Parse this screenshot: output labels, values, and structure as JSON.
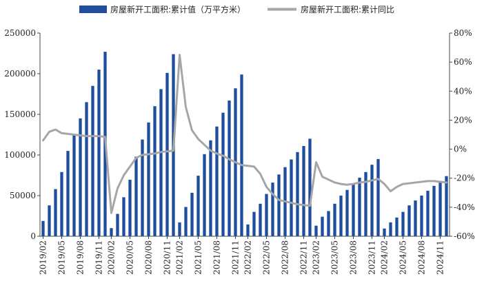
{
  "chart_data": {
    "type": "bar+line",
    "title": "",
    "legend_position": "top-center",
    "grid": false,
    "categories": [
      "2019/02",
      "2019/03",
      "2019/04",
      "2019/05",
      "2019/06",
      "2019/07",
      "2019/08",
      "2019/09",
      "2019/10",
      "2019/11",
      "2019/12",
      "2020/02",
      "2020/03",
      "2020/04",
      "2020/05",
      "2020/06",
      "2020/07",
      "2020/08",
      "2020/09",
      "2020/10",
      "2020/11",
      "2020/12",
      "2021/02",
      "2021/03",
      "2021/04",
      "2021/05",
      "2021/06",
      "2021/07",
      "2021/08",
      "2021/09",
      "2021/10",
      "2021/11",
      "2021/12",
      "2022/02",
      "2022/03",
      "2022/04",
      "2022/05",
      "2022/06",
      "2022/07",
      "2022/08",
      "2022/09",
      "2022/10",
      "2022/11",
      "2022/12",
      "2023/02",
      "2023/03",
      "2023/04",
      "2023/05",
      "2023/06",
      "2023/07",
      "2023/08",
      "2023/09",
      "2023/10",
      "2023/11",
      "2023/12",
      "2024/02",
      "2024/03",
      "2024/04",
      "2024/05",
      "2024/06",
      "2024/07",
      "2024/08",
      "2024/09",
      "2024/10",
      "2024/11",
      "2024/12"
    ],
    "x_tick_labels": [
      "2019/02",
      "2019/05",
      "2019/08",
      "2019/11",
      "2020/02",
      "2020/05",
      "2020/08",
      "2020/11",
      "2021/02",
      "2021/05",
      "2021/08",
      "2021/11",
      "2022/02",
      "2022/05",
      "2022/08",
      "2022/11",
      "2023/02",
      "2023/05",
      "2023/08",
      "2023/11",
      "2024/02",
      "2024/05",
      "2024/08",
      "2024/11"
    ],
    "y_left": {
      "lim": [
        0,
        250000
      ],
      "ticks": [
        "0",
        "50000",
        "100000",
        "150000",
        "200000",
        "250000"
      ],
      "tick_values": [
        0,
        50000,
        100000,
        150000,
        200000,
        250000
      ]
    },
    "y_right": {
      "lim": [
        -60,
        80
      ],
      "ticks": [
        "-60%",
        "-40%",
        "-20%",
        "0%",
        "20%",
        "40%",
        "60%",
        "80%"
      ],
      "tick_values": [
        -60,
        -40,
        -20,
        0,
        20,
        40,
        60,
        80
      ]
    },
    "series": [
      {
        "name": "房屋新开工面积:累计值（万平方米）",
        "kind": "bar",
        "axis": "left",
        "color": "#1f4e9e",
        "values": [
          18800,
          38000,
          58000,
          79000,
          105000,
          125000,
          145000,
          165000,
          185000,
          205000,
          227000,
          10000,
          27500,
          48000,
          69500,
          98000,
          119000,
          140000,
          160000,
          181000,
          201000,
          224000,
          17000,
          36000,
          53500,
          74500,
          101000,
          118000,
          135000,
          152000,
          167000,
          182000,
          199000,
          14500,
          30000,
          40000,
          52000,
          66000,
          76000,
          85000,
          94500,
          103500,
          111000,
          120000,
          13000,
          24000,
          31000,
          40000,
          50000,
          57000,
          64000,
          72000,
          79000,
          88000,
          95000,
          9500,
          17000,
          23000,
          30000,
          38000,
          44000,
          50000,
          56000,
          62000,
          68000,
          74000
        ]
      },
      {
        "name": "房屋新开工面积:累计同比",
        "kind": "line",
        "axis": "right",
        "color": "#a6a6a6",
        "values": [
          6,
          12,
          13.5,
          11,
          10.5,
          10,
          9.5,
          9,
          9,
          9,
          8.5,
          -44,
          -27,
          -18,
          -12,
          -6,
          -4,
          -3.5,
          -3,
          -2,
          -1.5,
          -1,
          65,
          29,
          13,
          7,
          3,
          -1,
          -3,
          -4.5,
          -7,
          -9,
          -11,
          -11.5,
          -12,
          -17,
          -26,
          -31,
          -35,
          -36,
          -37,
          -38,
          -38.5,
          -39,
          -9,
          -19,
          -21,
          -23,
          -24,
          -24.5,
          -24,
          -23,
          -22.5,
          -21.5,
          -20.5,
          -24,
          -29,
          -26,
          -24,
          -23.5,
          -23,
          -22.5,
          -22,
          -22,
          -22.5,
          -23
        ]
      }
    ]
  }
}
